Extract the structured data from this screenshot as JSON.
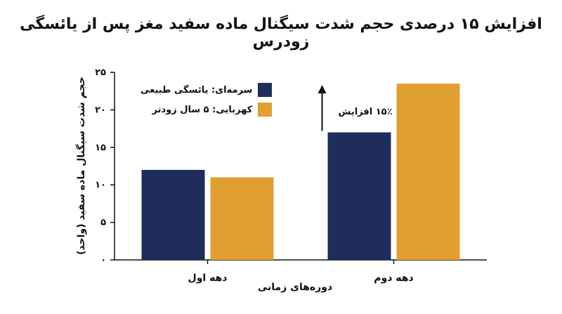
{
  "chart_data": {
    "type": "bar",
    "title": "افزایش ۱۵ درصدی حجم شدت سیگنال ماده سفید مغز پس از یائسگی زودرس",
    "xlabel": "دوره‌های زمانی",
    "ylabel": "حجم شدت سیگنال ماده سفید (واحد)",
    "categories": [
      "دهه اول",
      "دهه دوم"
    ],
    "series": [
      {
        "name": "سرمه‌ای: یائسگی طبیعی",
        "color": "#1e2d5a",
        "values": [
          12,
          17
        ]
      },
      {
        "name": "کهربایی: ۵ سال زودتر",
        "color": "#e09f30",
        "values": [
          11,
          23.5
        ]
      }
    ],
    "ylim": [
      0,
      25
    ],
    "yticks": [
      0,
      5,
      10,
      15,
      20,
      25
    ],
    "ytick_labels": [
      "۰",
      "۵",
      "۱۰",
      "۱۵",
      "۲۰",
      "۲۵"
    ],
    "grid": false,
    "legend_position": "top-left",
    "annotation": {
      "text": "۱۵٪ افزایش"
    }
  }
}
